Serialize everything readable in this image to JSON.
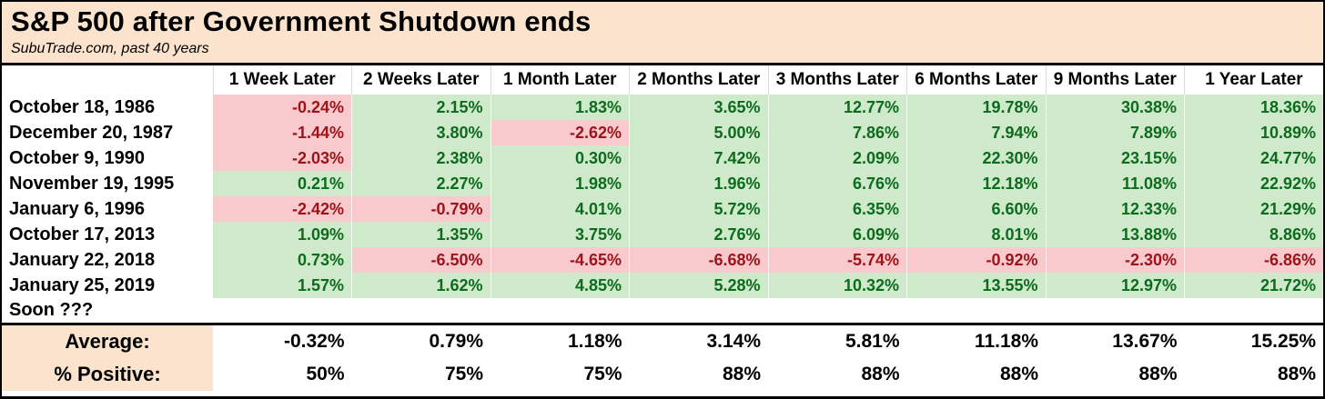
{
  "title": "S&P 500 after Government Shutdown ends",
  "subtitle": "SubuTrade.com, past 40 years",
  "colors": {
    "header_bg": "#fbe3cd",
    "positive_bg": "#cfe9cb",
    "negative_bg": "#f8c9cd",
    "positive_text": "#0d6b1e",
    "negative_text": "#9e1218",
    "border": "#000000"
  },
  "chart_data": {
    "type": "table",
    "title": "S&P 500 after Government Shutdown ends",
    "subtitle": "SubuTrade.com, past 40 years",
    "row_label_header": "",
    "column_headers": [
      "1 Week Later",
      "2 Weeks Later",
      "1 Month Later",
      "2 Months Later",
      "3 Months Later",
      "6 Months Later",
      "9 Months Later",
      "1 Year Later"
    ],
    "rows": [
      {
        "label": "October 18, 1986",
        "values": [
          "-0.24%",
          "2.15%",
          "1.83%",
          "3.65%",
          "12.77%",
          "19.78%",
          "30.38%",
          "18.36%"
        ]
      },
      {
        "label": "December 20, 1987",
        "values": [
          "-1.44%",
          "3.80%",
          "-2.62%",
          "5.00%",
          "7.86%",
          "7.94%",
          "7.89%",
          "10.89%"
        ]
      },
      {
        "label": "October 9, 1990",
        "values": [
          "-2.03%",
          "2.38%",
          "0.30%",
          "7.42%",
          "2.09%",
          "22.30%",
          "23.15%",
          "24.77%"
        ]
      },
      {
        "label": "November 19, 1995",
        "values": [
          "0.21%",
          "2.27%",
          "1.98%",
          "1.96%",
          "6.76%",
          "12.18%",
          "11.08%",
          "22.92%"
        ]
      },
      {
        "label": "January 6, 1996",
        "values": [
          "-2.42%",
          "-0.79%",
          "4.01%",
          "5.72%",
          "6.35%",
          "6.60%",
          "12.33%",
          "21.29%"
        ]
      },
      {
        "label": "October 17, 2013",
        "values": [
          "1.09%",
          "1.35%",
          "3.75%",
          "2.76%",
          "6.09%",
          "8.01%",
          "13.88%",
          "8.86%"
        ]
      },
      {
        "label": "January 22, 2018",
        "values": [
          "0.73%",
          "-6.50%",
          "-4.65%",
          "-6.68%",
          "-5.74%",
          "-0.92%",
          "-2.30%",
          "-6.86%"
        ]
      },
      {
        "label": "January 25, 2019",
        "values": [
          "1.57%",
          "1.62%",
          "4.85%",
          "5.28%",
          "10.32%",
          "13.55%",
          "12.97%",
          "21.72%"
        ]
      },
      {
        "label": "Soon ???",
        "values": [
          "",
          "",
          "",
          "",
          "",
          "",
          "",
          ""
        ]
      }
    ],
    "summary_rows": [
      {
        "label": "Average:",
        "values": [
          "-0.32%",
          "0.79%",
          "1.18%",
          "3.14%",
          "5.81%",
          "11.18%",
          "13.67%",
          "15.25%"
        ]
      },
      {
        "label": "% Positive:",
        "values": [
          "50%",
          "75%",
          "75%",
          "88%",
          "88%",
          "88%",
          "88%",
          "88%"
        ]
      }
    ]
  }
}
